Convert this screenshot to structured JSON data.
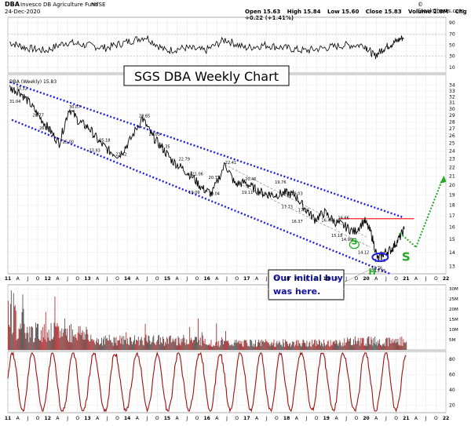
{
  "header": {
    "symbol": "DBA",
    "name": "Invesco DB Agriculture Fund",
    "exchange": "NYSE",
    "date": "24-Dec-2020",
    "watermark": "© StockCharts.com",
    "open": "Open 15.63",
    "high": "High 15.84",
    "low": "Low 15.60",
    "close": "Close 15.83",
    "volume": "Volume 2.8M",
    "change": "Chg +0.22 (+1.41%)"
  },
  "colors": {
    "price_line": "#000000",
    "channel": "#1e1ee6",
    "resistance": "#ff2020",
    "arrow": "#22aa22",
    "s_label": "#22aa22",
    "volume": "#b03030",
    "oscillator": "#a01010",
    "callout_text": "#1010a0",
    "rsi": "#555555"
  },
  "annotations": {
    "title": "SGS DBA Weekly Chart",
    "callout": "Our initial buy was here.",
    "s_labels": [
      "S",
      "H",
      "S"
    ],
    "price_legend": "DBA (Weekly) 15.83"
  },
  "chart_data": [
    {
      "type": "line",
      "panel": "rsi",
      "y_ticks": [
        90,
        70,
        50,
        30,
        10
      ],
      "ylim": [
        0,
        100
      ],
      "x": [
        "2011-01",
        "2011-06",
        "2011-12",
        "2012-06",
        "2012-12",
        "2013-06",
        "2013-12",
        "2014-06",
        "2014-12",
        "2015-06",
        "2015-12",
        "2016-06",
        "2016-12",
        "2017-06",
        "2017-12",
        "2018-06",
        "2018-12",
        "2019-06",
        "2019-12",
        "2020-03",
        "2020-06",
        "2020-09",
        "2020-12"
      ],
      "values": [
        55,
        45,
        40,
        55,
        50,
        45,
        55,
        65,
        40,
        45,
        40,
        60,
        45,
        50,
        45,
        40,
        45,
        50,
        50,
        30,
        45,
        55,
        65
      ]
    },
    {
      "type": "line",
      "panel": "price",
      "title": "SGS DBA Weekly Chart",
      "scale": "log",
      "ylim": [
        12.5,
        36
      ],
      "y_ticks": [
        34,
        33,
        32,
        31,
        30,
        29,
        28,
        27,
        26,
        25,
        24,
        23,
        22,
        21,
        20,
        19,
        18,
        17,
        16,
        15,
        14,
        13
      ],
      "x_tick_labels": [
        "11",
        "A",
        "J",
        "O",
        "12",
        "A",
        "J",
        "O",
        "13",
        "A",
        "J",
        "O",
        "14",
        "A",
        "J",
        "O",
        "15",
        "A",
        "J",
        "O",
        "16",
        "A",
        "J",
        "O",
        "17",
        "A",
        "J",
        "O",
        "18",
        "A",
        "J",
        "O",
        "19",
        "A",
        "J",
        "O",
        "20",
        "A",
        "J",
        "O",
        "21",
        "A",
        "J",
        "O",
        "22"
      ],
      "series": [
        {
          "name": "DBA (Weekly) 15.83",
          "x": [
            "2011-01",
            "2011-04",
            "2011-07",
            "2011-10",
            "2012-01",
            "2012-04",
            "2012-07",
            "2012-10",
            "2013-01",
            "2013-04",
            "2013-07",
            "2013-10",
            "2014-01",
            "2014-05",
            "2014-08",
            "2014-11",
            "2015-02",
            "2015-05",
            "2015-08",
            "2015-11",
            "2016-02",
            "2016-06",
            "2016-09",
            "2016-12",
            "2017-03",
            "2017-06",
            "2017-09",
            "2017-12",
            "2018-03",
            "2018-06",
            "2018-09",
            "2018-12",
            "2019-03",
            "2019-06",
            "2019-09",
            "2019-12",
            "2020-02",
            "2020-04",
            "2020-06",
            "2020-08",
            "2020-10",
            "2020-12"
          ],
          "values": [
            33.5,
            32.9,
            31.0,
            28.8,
            26.9,
            25.0,
            30.1,
            28.0,
            27.1,
            25.2,
            24.0,
            23.4,
            25.1,
            28.6,
            26.0,
            24.4,
            22.8,
            21.9,
            21.0,
            19.7,
            19.1,
            22.4,
            20.1,
            20.3,
            19.6,
            19.1,
            19.0,
            19.2,
            19.0,
            17.7,
            16.7,
            17.3,
            16.5,
            16.1,
            15.6,
            16.6,
            15.5,
            13.5,
            14.0,
            14.2,
            14.9,
            15.83
          ]
        }
      ],
      "data_labels": [
        {
          "x": "2011-03",
          "y": 33.2,
          "text": "33.32"
        },
        {
          "x": "2011-01",
          "y": 31.0,
          "text": "31.04"
        },
        {
          "x": "2011-08",
          "y": 28.8,
          "text": "28.77"
        },
        {
          "x": "2011-10",
          "y": 26.9,
          "text": "26.86"
        },
        {
          "x": "2012-05",
          "y": 25.0,
          "text": "25.00"
        },
        {
          "x": "2012-07",
          "y": 30.1,
          "text": "30.07"
        },
        {
          "x": "2013-01",
          "y": 23.9,
          "text": "23.93"
        },
        {
          "x": "2013-04",
          "y": 25.2,
          "text": "25.18"
        },
        {
          "x": "2013-09",
          "y": 23.4,
          "text": "23.42"
        },
        {
          "x": "2014-04",
          "y": 28.7,
          "text": "28.65"
        },
        {
          "x": "2014-07",
          "y": 26.0,
          "text": "26.03"
        },
        {
          "x": "2014-10",
          "y": 24.4,
          "text": "24.35"
        },
        {
          "x": "2015-04",
          "y": 22.8,
          "text": "22.79"
        },
        {
          "x": "2015-08",
          "y": 21.1,
          "text": "21.06"
        },
        {
          "x": "2015-07",
          "y": 19.1,
          "text": "19.09"
        },
        {
          "x": "2016-01",
          "y": 20.7,
          "text": "20.73"
        },
        {
          "x": "2016-01",
          "y": 19.0,
          "text": "19.04"
        },
        {
          "x": "2016-06",
          "y": 22.4,
          "text": "22.41"
        },
        {
          "x": "2016-12",
          "y": 20.5,
          "text": "20.46"
        },
        {
          "x": "2016-11",
          "y": 19.1,
          "text": "19.11"
        },
        {
          "x": "2017-05",
          "y": 19.0,
          "text": "19.06"
        },
        {
          "x": "2017-09",
          "y": 20.2,
          "text": "19.76"
        },
        {
          "x": "2017-11",
          "y": 19.0,
          "text": "19.00"
        },
        {
          "x": "2018-02",
          "y": 19.0,
          "text": "19.03"
        },
        {
          "x": "2017-11",
          "y": 17.7,
          "text": "17.73"
        },
        {
          "x": "2018-04",
          "y": 17.4,
          "text": "17.36"
        },
        {
          "x": "2018-02",
          "y": 16.4,
          "text": "16.37"
        },
        {
          "x": "2018-11",
          "y": 16.5,
          "text": "16.46"
        },
        {
          "x": "2019-04",
          "y": 16.7,
          "text": "16.66"
        },
        {
          "x": "2019-02",
          "y": 15.2,
          "text": "15.18"
        },
        {
          "x": "2019-05",
          "y": 14.9,
          "text": "14.99"
        },
        {
          "x": "2019-10",
          "y": 13.9,
          "text": "14.12"
        },
        {
          "x": "2020-03",
          "y": 13.3,
          "text": "13.55"
        },
        {
          "x": "2020-02",
          "y": 12.8,
          "text": "12.76"
        },
        {
          "x": "2020-03",
          "y": 12.6,
          "text": "13.15"
        }
      ]
    },
    {
      "type": "bar",
      "panel": "volume",
      "y_ticks": [
        "30M",
        "25M",
        "20M",
        "15M",
        "10M",
        "5M"
      ],
      "ylim": [
        0,
        32
      ],
      "unit": "M"
    },
    {
      "type": "line",
      "panel": "oscillator",
      "y_ticks": [
        80,
        60,
        40,
        20
      ],
      "ylim": [
        10,
        90
      ],
      "x_tick_labels": [
        "11",
        "A",
        "J",
        "O",
        "12",
        "A",
        "J",
        "O",
        "13",
        "A",
        "J",
        "O",
        "14",
        "A",
        "J",
        "O",
        "15",
        "A",
        "J",
        "O",
        "16",
        "A",
        "J",
        "O",
        "17",
        "A",
        "J",
        "O",
        "18",
        "A",
        "J",
        "O",
        "19",
        "A",
        "J",
        "O",
        "20",
        "A",
        "J",
        "O",
        "21",
        "A",
        "J",
        "O",
        "22"
      ]
    }
  ]
}
